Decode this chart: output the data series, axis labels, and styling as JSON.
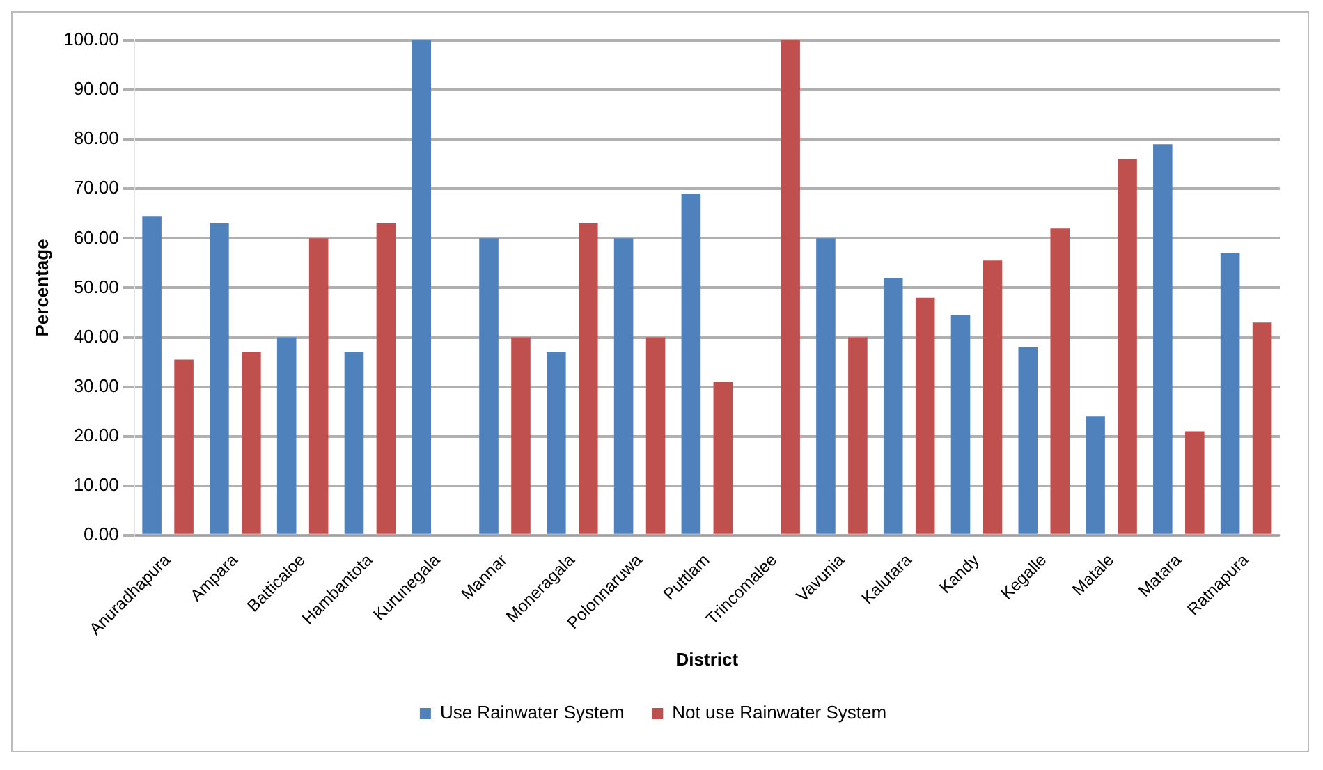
{
  "chart_data": {
    "type": "bar",
    "xlabel": "District",
    "ylabel": "Percentage",
    "categories": [
      "Anuradhapura",
      "Ampara",
      "Batticaloe",
      "Hambantota",
      "Kurunegala",
      "Mannar",
      "Moneragala",
      "Polonnaruwa",
      "Puttlam",
      "Trincomalee",
      "Vavunia",
      "Kalutara",
      "Kandy",
      "Kegalle",
      "Matale",
      "Matara",
      "Ratnapura"
    ],
    "series": [
      {
        "name": "Use Rainwater System",
        "color": "#4f81bd",
        "values": [
          64.5,
          63,
          40,
          37,
          100,
          60,
          37,
          60,
          69,
          0,
          60,
          52,
          44.5,
          38,
          24,
          79,
          57
        ]
      },
      {
        "name": "Not use Rainwater System",
        "color": "#c0504d",
        "values": [
          35.5,
          37,
          60,
          63,
          0,
          40,
          63,
          40,
          31,
          100,
          40,
          48,
          55.5,
          62,
          76,
          21,
          43
        ]
      }
    ],
    "ylim": [
      0,
      100
    ],
    "yticks": [
      {
        "value": 0,
        "label": "0.00"
      },
      {
        "value": 10,
        "label": "10.00"
      },
      {
        "value": 20,
        "label": "20.00"
      },
      {
        "value": 30,
        "label": "30.00"
      },
      {
        "value": 40,
        "label": "40.00"
      },
      {
        "value": 50,
        "label": "50.00"
      },
      {
        "value": 60,
        "label": "60.00"
      },
      {
        "value": 70,
        "label": "70.00"
      },
      {
        "value": 80,
        "label": "80.00"
      },
      {
        "value": 90,
        "label": "90.00"
      },
      {
        "value": 100,
        "label": "100.00"
      }
    ],
    "grid": "y",
    "legend": "bottom"
  }
}
